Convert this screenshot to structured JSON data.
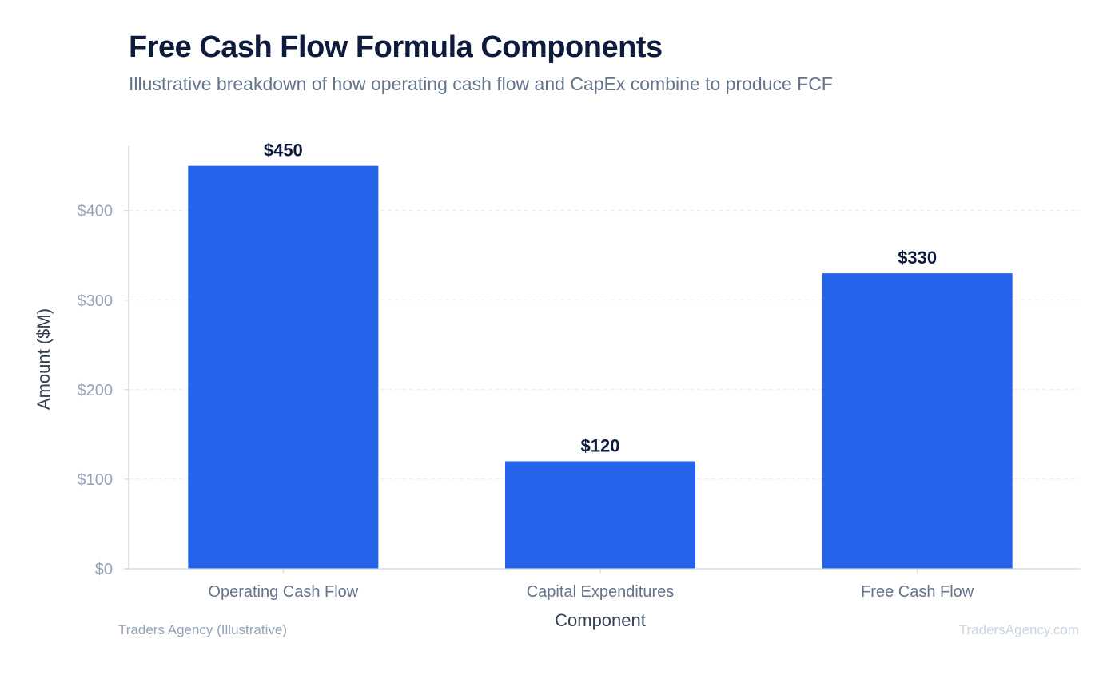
{
  "header": {
    "title": "Free Cash Flow Formula Components",
    "subtitle": "Illustrative breakdown of how operating cash flow and CapEx combine to produce FCF"
  },
  "footer": {
    "source": "Traders Agency (Illustrative)",
    "watermark": "TradersAgency.com"
  },
  "colors": {
    "bar": "#2563eb",
    "title": "#0f1b3d",
    "axis": "#cbd5e1",
    "grid": "#e5e7eb",
    "tick_label": "#94a3b8",
    "category_label": "#64748b",
    "axis_title": "#334155",
    "data_label": "#0f1b3d"
  },
  "chart_data": {
    "type": "bar",
    "title": "Free Cash Flow Formula Components",
    "subtitle": "Illustrative breakdown of how operating cash flow and CapEx combine to produce FCF",
    "xlabel": "Component",
    "ylabel": "Amount ($M)",
    "categories": [
      "Operating Cash Flow",
      "Capital Expenditures",
      "Free Cash Flow"
    ],
    "values": [
      450,
      120,
      330
    ],
    "data_labels": [
      "$450",
      "$120",
      "$330"
    ],
    "ylim": [
      0,
      472
    ],
    "yticks": [
      0,
      100,
      200,
      300,
      400
    ],
    "ytick_labels": [
      "$0",
      "$100",
      "$200",
      "$300",
      "$400"
    ],
    "grid": true,
    "legend": "none"
  }
}
